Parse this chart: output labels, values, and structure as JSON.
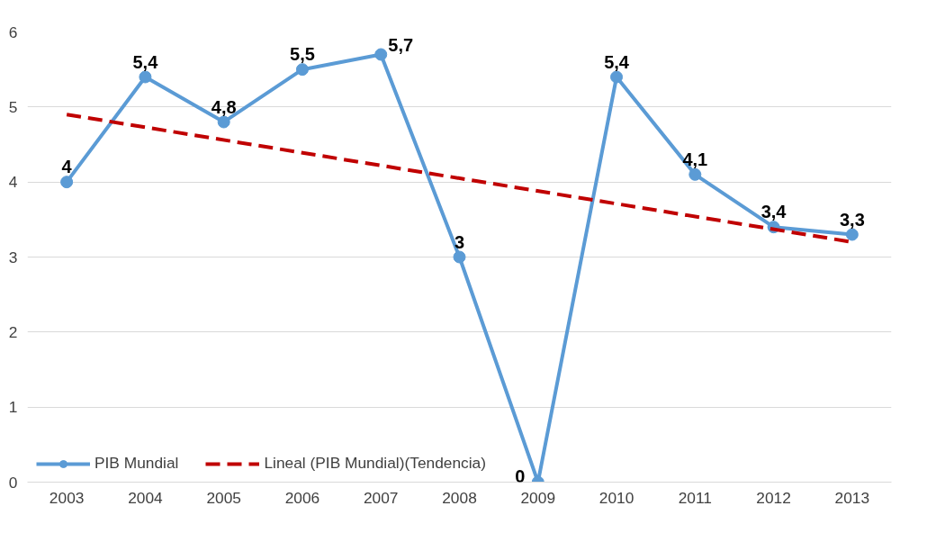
{
  "chart_data": {
    "type": "line",
    "x": [
      2003,
      2004,
      2005,
      2006,
      2007,
      2008,
      2009,
      2010,
      2011,
      2012,
      2013
    ],
    "xlim": [
      2002.5,
      2013.5
    ],
    "xticks": [
      2003,
      2004,
      2005,
      2006,
      2007,
      2008,
      2009,
      2010,
      2011,
      2012,
      2013
    ],
    "ylim": [
      0,
      6
    ],
    "yticks": [
      0,
      1,
      2,
      3,
      4,
      5,
      6
    ],
    "grid": "y",
    "legend": "bottom",
    "series": [
      {
        "name": "PIB Mundial",
        "color": "#5b9bd5",
        "marker": "circle",
        "line_style": "solid",
        "values": [
          4,
          5.4,
          4.8,
          5.5,
          5.7,
          3,
          0,
          5.4,
          4.1,
          3.4,
          3.3
        ],
        "value_labels": [
          "4",
          "5,4",
          "4,8",
          "5,5",
          "5,7",
          "3",
          "0",
          "5,4",
          "4,1",
          "3,4",
          "3,3"
        ]
      },
      {
        "name": "Lineal (PIB Mundial)(Tendencia)",
        "type": "line",
        "color": "#c00000",
        "marker": "none",
        "line_style": "dashed",
        "x": [
          2003,
          2013
        ],
        "values": [
          4.9,
          3.2
        ]
      }
    ]
  }
}
